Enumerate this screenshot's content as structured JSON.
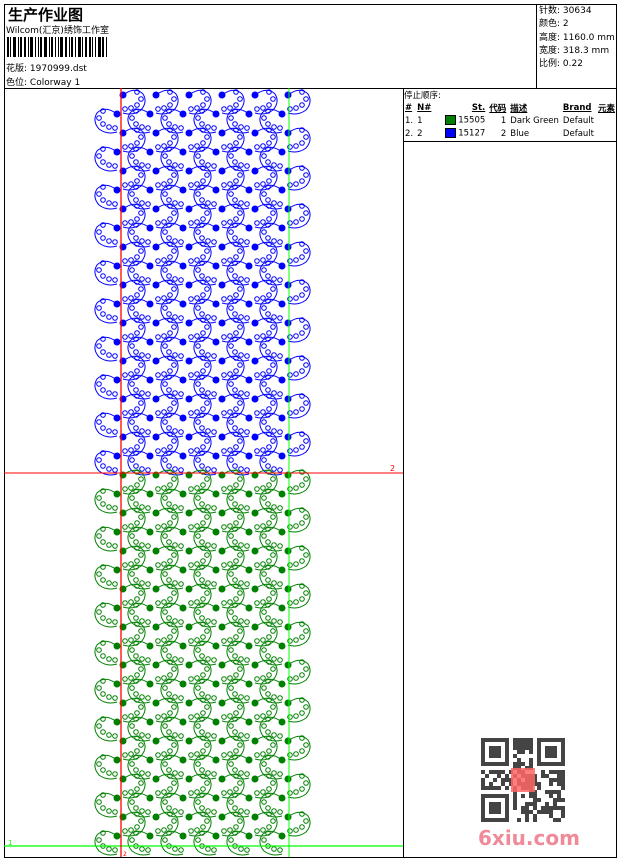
{
  "header": {
    "title": "生产作业图",
    "studio": "Wilcom(汇京)绣饰工作室",
    "design_label": "花版:",
    "design_value": "1970999.dst",
    "colorway_label": "色位:",
    "colorway_value": "Colorway 1"
  },
  "info": [
    {
      "label": "针数:",
      "value": "30634"
    },
    {
      "label": "颜色:",
      "value": "2"
    },
    {
      "label": "高度:",
      "value": "1160.0 mm"
    },
    {
      "label": "宽度:",
      "value": "318.3 mm"
    },
    {
      "label": "比例:",
      "value": "0.22"
    }
  ],
  "stop_sequence": {
    "title": "停止顺序:",
    "columns": [
      "#",
      "N#",
      "St.",
      "代码",
      "描述",
      "Brand",
      "元素"
    ],
    "rows": [
      {
        "idx": "1.",
        "n": "1",
        "color": "#008000",
        "st": "15505",
        "code": "1",
        "desc": "Dark Green",
        "brand": "Default",
        "elem": ""
      },
      {
        "idx": "2.",
        "n": "2",
        "color": "#0000ff",
        "st": "15127",
        "code": "2",
        "desc": "Blue",
        "brand": "Default",
        "elem": ""
      }
    ]
  },
  "markers": {
    "start": "1",
    "stop": "2",
    "end": "2"
  },
  "colors": {
    "blue": "#0000ff",
    "green": "#008000",
    "red": "#ff0000",
    "guide_green": "#00ff00"
  },
  "watermark": "6xiu.com"
}
